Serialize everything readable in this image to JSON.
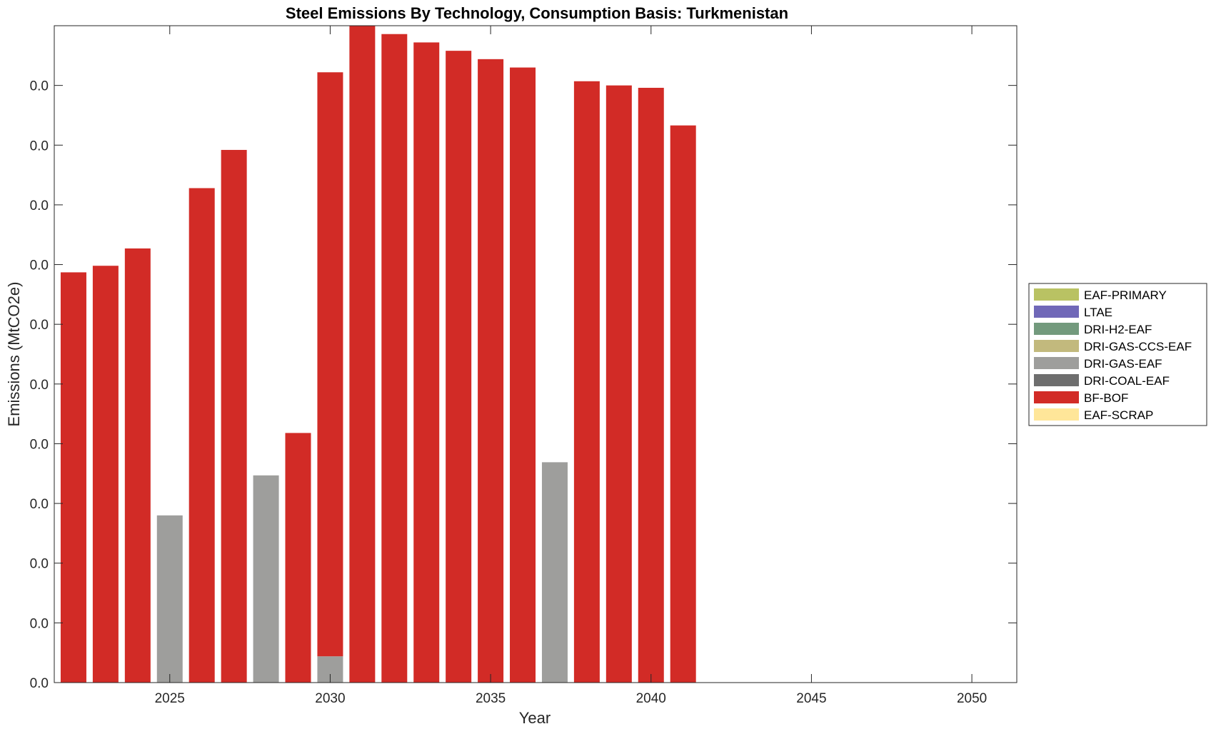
{
  "chart_data": {
    "type": "bar",
    "stacked": true,
    "title": "Steel Emissions By Technology, Consumption Basis: Turkmenistan",
    "xlabel": "Year",
    "ylabel": "Emissions (MtCO2e)",
    "xlim": [
      2021.4,
      2051.4
    ],
    "ylim": [
      0,
      11
    ],
    "x_ticks": [
      2025,
      2030,
      2035,
      2040,
      2045,
      2050
    ],
    "y_ticks": [
      0,
      1,
      2,
      3,
      4,
      5,
      6,
      7,
      8,
      9,
      10
    ],
    "y_tick_labels": [
      "0.0",
      "0.0",
      "0.0",
      "0.0",
      "0.0",
      "0.0",
      "0.0",
      "0.0",
      "0.0",
      "0.0",
      "0.0"
    ],
    "grid": false,
    "legend_position": "right-outside",
    "x": [
      2022,
      2023,
      2024,
      2025,
      2026,
      2027,
      2028,
      2029,
      2030,
      2031,
      2032,
      2033,
      2034,
      2035,
      2036,
      2037,
      2038,
      2039,
      2040,
      2041
    ],
    "series": [
      {
        "name": "EAF-PRIMARY",
        "color": "#b9c263",
        "values": [
          0,
          0,
          0,
          0,
          0,
          0,
          0,
          0,
          0,
          0,
          0,
          0,
          0,
          0,
          0,
          0,
          0,
          0,
          0,
          0
        ]
      },
      {
        "name": "LTAE",
        "color": "#7068b8",
        "values": [
          0,
          0,
          0,
          0,
          0,
          0,
          0,
          0,
          0,
          0,
          0,
          0,
          0,
          0,
          0,
          0,
          0,
          0,
          0,
          0
        ]
      },
      {
        "name": "DRI-H2-EAF",
        "color": "#739a7d",
        "values": [
          0,
          0,
          0,
          0,
          0,
          0,
          0,
          0,
          0,
          0,
          0,
          0,
          0,
          0,
          0,
          0,
          0,
          0,
          0,
          0
        ]
      },
      {
        "name": "DRI-GAS-CCS-EAF",
        "color": "#c2b97d",
        "values": [
          0,
          0,
          0,
          0,
          0,
          0,
          0,
          0,
          0,
          0,
          0,
          0,
          0,
          0,
          0,
          0,
          0,
          0,
          0,
          0
        ]
      },
      {
        "name": "DRI-GAS-EAF",
        "color": "#9e9e9c",
        "values": [
          0,
          0,
          0,
          2.8,
          0,
          0,
          3.47,
          0,
          0.44,
          0,
          0,
          0,
          0,
          0,
          0,
          3.69,
          0,
          0,
          0,
          0
        ]
      },
      {
        "name": "DRI-COAL-EAF",
        "color": "#6e6e6e",
        "values": [
          0,
          0,
          0,
          0,
          0,
          0,
          0,
          0,
          0,
          0,
          0,
          0,
          0,
          0,
          0,
          0,
          0,
          0,
          0,
          0
        ]
      },
      {
        "name": "BF-BOF",
        "color": "#d22b26",
        "values": [
          6.87,
          6.98,
          7.27,
          0,
          8.28,
          8.92,
          0,
          4.18,
          9.78,
          11.0,
          10.86,
          10.72,
          10.58,
          10.44,
          10.3,
          0,
          10.07,
          10.0,
          9.96,
          9.33
        ]
      },
      {
        "name": "EAF-SCRAP",
        "color": "#ffe699",
        "values": [
          0,
          0,
          0,
          0,
          0,
          0,
          0,
          0,
          0,
          0,
          0,
          0,
          0,
          0,
          0,
          0,
          0,
          0,
          0,
          0
        ]
      }
    ],
    "stack_order": [
      "DRI-GAS-EAF",
      "BF-BOF"
    ]
  }
}
